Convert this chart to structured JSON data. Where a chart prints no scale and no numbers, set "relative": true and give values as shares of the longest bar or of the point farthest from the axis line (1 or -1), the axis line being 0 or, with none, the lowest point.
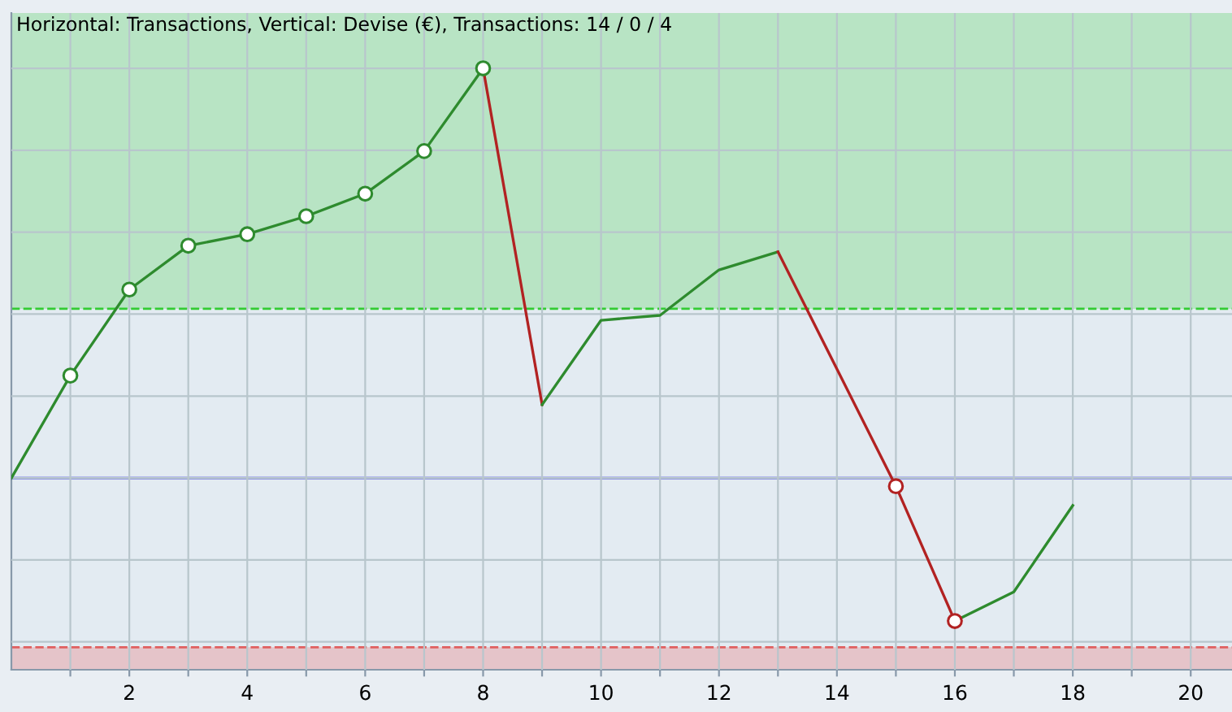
{
  "chart_data": {
    "type": "line",
    "title": "Horizontal: Transactions, Vertical: Devise (€), Transactions: 14 / 0 / 4",
    "relative": true,
    "grid": true,
    "marker": "none",
    "line_style": "solid",
    "xlim": [
      0,
      20.7
    ],
    "xticks": [
      {
        "value": 1,
        "label": null
      },
      2,
      {
        "value": 3,
        "label": null
      },
      4,
      {
        "value": 5,
        "label": null
      },
      6,
      {
        "value": 7,
        "label": null
      },
      8,
      {
        "value": 9,
        "label": null
      },
      10,
      {
        "value": 11,
        "label": null
      },
      12,
      {
        "value": 13,
        "label": null
      },
      14,
      {
        "value": 15,
        "label": null
      },
      16,
      {
        "value": 17,
        "label": null
      },
      18,
      {
        "value": 19,
        "label": null
      },
      20
    ],
    "series": [
      {
        "color": "#2e8b2e",
        "x": [
          0,
          1,
          2,
          3,
          4,
          5,
          6,
          7,
          8
        ],
        "values": [
          0,
          0.25,
          0.46,
          0.567,
          0.595,
          0.639,
          0.694,
          0.798,
          1
        ]
      },
      {
        "color": "#b22222",
        "x": [
          8,
          9
        ],
        "values": [
          1,
          0.179
        ]
      },
      {
        "color": "#2e8b2e",
        "x": [
          9,
          10,
          11,
          12,
          13
        ],
        "values": [
          0.179,
          0.385,
          0.397,
          0.508,
          0.552
        ]
      },
      {
        "color": "#b22222",
        "x": [
          13,
          14,
          15,
          16
        ],
        "values": [
          0.552,
          0.266,
          -0.02,
          -0.349
        ]
      },
      {
        "color": "#2e8b2e",
        "x": [
          16,
          17,
          18
        ],
        "values": [
          -0.349,
          -0.278,
          -0.067
        ]
      },
      {
        "type": "scatter",
        "marker": "circle",
        "x": [
          1,
          2,
          3,
          4,
          5,
          6,
          7,
          8,
          15,
          16
        ],
        "values": [
          0.25,
          0.46,
          0.567,
          0.595,
          0.639,
          0.694,
          0.798,
          1,
          -0.02,
          -0.349
        ],
        "colors": [
          "#2e8b2e",
          "#2e8b2e",
          "#2e8b2e",
          "#2e8b2e",
          "#2e8b2e",
          "#2e8b2e",
          "#2e8b2e",
          "#2e8b2e",
          "#b22222",
          "#b22222"
        ]
      }
    ],
    "ref_lines": [
      {
        "axis": "y",
        "value": 0,
        "color": "#2222dd",
        "line_style": "solid"
      },
      {
        "axis": "y",
        "value": 0.413,
        "color": "#33cc33",
        "line_style": "dashed"
      },
      {
        "axis": "y",
        "value": -0.413,
        "color": "#e06060",
        "line_style": "dashed"
      }
    ],
    "bands": [
      {
        "axis": "y",
        "from": 0.413,
        "to": 1.135,
        "color": "#b8e4c4"
      },
      {
        "axis": "y",
        "from": -0.468,
        "to": -0.413,
        "color": "#e5c4c9"
      }
    ]
  }
}
